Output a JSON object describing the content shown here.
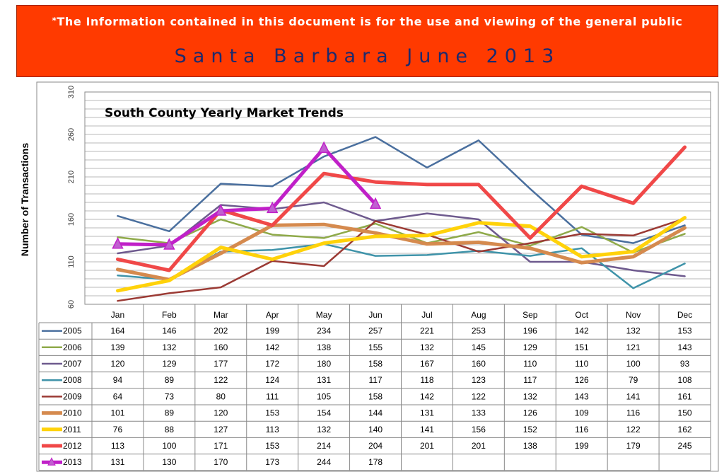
{
  "banner": {
    "notice_mark": "*",
    "notice": "The Information contained in this document is for the use and viewing of the general public",
    "subtitle": "Santa Barbara June 2013",
    "bg_color": "#ff3a00"
  },
  "chart_data": {
    "type": "line",
    "title": "South County Yearly Market Trends",
    "ylabel": "Number of Transactions",
    "xlabel": "",
    "ylim": [
      60,
      310
    ],
    "yticks": [
      60,
      110,
      160,
      210,
      260,
      310
    ],
    "grid": true,
    "legend": "data-table",
    "categories": [
      "Jan",
      "Feb",
      "Mar",
      "Apr",
      "May",
      "Jun",
      "Jul",
      "Aug",
      "Sep",
      "Oct",
      "Nov",
      "Dec"
    ],
    "series": [
      {
        "name": "2005",
        "color": "#4a6f9e",
        "values": [
          164,
          146,
          202,
          199,
          234,
          257,
          221,
          253,
          196,
          142,
          132,
          153
        ]
      },
      {
        "name": "2006",
        "color": "#8faa4a",
        "values": [
          139,
          132,
          160,
          142,
          138,
          155,
          132,
          145,
          129,
          151,
          121,
          143
        ]
      },
      {
        "name": "2007",
        "color": "#6e5a8e",
        "values": [
          120,
          129,
          177,
          172,
          180,
          158,
          167,
          160,
          110,
          110,
          100,
          93
        ]
      },
      {
        "name": "2008",
        "color": "#3f93a9",
        "values": [
          94,
          89,
          122,
          124,
          131,
          117,
          118,
          123,
          117,
          126,
          79,
          108
        ]
      },
      {
        "name": "2009",
        "color": "#9b3a34",
        "values": [
          64,
          73,
          80,
          111,
          105,
          158,
          142,
          122,
          132,
          143,
          141,
          161
        ]
      },
      {
        "name": "2010",
        "color": "#d58a4e",
        "values": [
          101,
          89,
          120,
          153,
          154,
          144,
          131,
          133,
          126,
          109,
          116,
          150
        ]
      },
      {
        "name": "2011",
        "color": "#ffd20a",
        "values": [
          76,
          88,
          127,
          113,
          132,
          140,
          141,
          156,
          152,
          116,
          122,
          162
        ]
      },
      {
        "name": "2012",
        "color": "#f04848",
        "values": [
          113,
          100,
          171,
          153,
          214,
          204,
          201,
          201,
          138,
          199,
          179,
          245
        ]
      },
      {
        "name": "2013",
        "color": "#c020c8",
        "marker": "triangle",
        "values": [
          131,
          130,
          170,
          173,
          244,
          178,
          null,
          null,
          null,
          null,
          null,
          null
        ]
      }
    ]
  }
}
